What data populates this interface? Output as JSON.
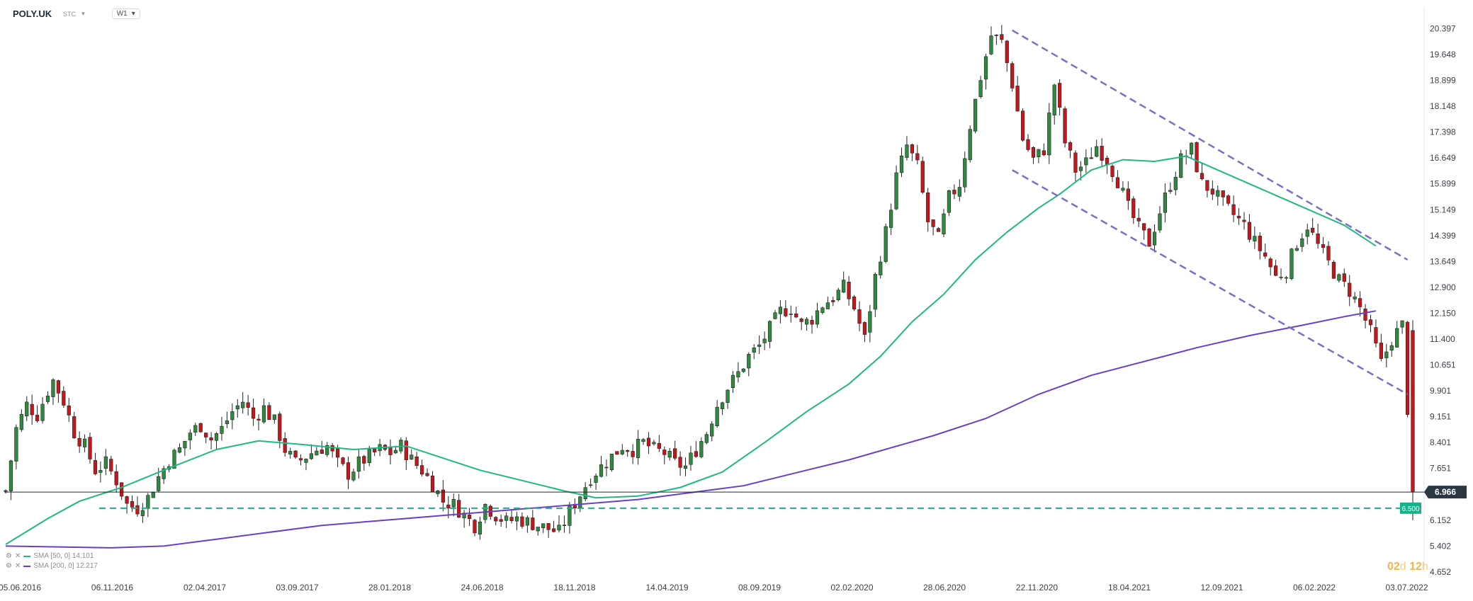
{
  "header": {
    "symbol": "POLY.UK",
    "exchange": "STC",
    "exchange_caret": "▾",
    "timeframe": "W1",
    "timeframe_caret": "▾"
  },
  "indicators": [
    {
      "label": "SMA [50, 0] 14.101",
      "color": "#1fb981"
    },
    {
      "label": "SMA [200, 0] 12.217",
      "color": "#6a3fc4"
    }
  ],
  "countdown": {
    "days": "02",
    "d": "d",
    "hours": "12",
    "h": "h"
  },
  "colors": {
    "up": "#2f8a3f",
    "down": "#c4161c",
    "sma50": "#1fb981",
    "sma200": "#6a3fc4",
    "channel": "#7a6fc6",
    "support": "#18b28a",
    "price_line": "#1f2a36"
  },
  "chart_data": {
    "type": "candlestick",
    "timeframe": "W1",
    "x_ticks": [
      "05.06.2016",
      "06.11.2016",
      "02.04.2017",
      "03.09.2017",
      "28.01.2018",
      "24.06.2018",
      "18.11.2018",
      "14.04.2019",
      "08.09.2019",
      "02.02.2020",
      "28.06.2020",
      "22.11.2020",
      "18.04.2021",
      "12.09.2021",
      "06.02.2022",
      "03.07.2022"
    ],
    "y_ticks": [
      20.397,
      19.648,
      18.899,
      18.148,
      17.398,
      16.649,
      15.899,
      15.149,
      14.399,
      13.649,
      12.9,
      12.15,
      11.4,
      10.651,
      9.901,
      9.151,
      8.401,
      7.651,
      6.901,
      6.152,
      5.402,
      4.652
    ],
    "ylim": [
      4.65,
      20.9
    ],
    "current_price": {
      "value": 6.966,
      "label": "6.966"
    },
    "support_level": {
      "value": 6.5,
      "label": "6.500"
    },
    "price_path": [
      [
        0,
        7.0
      ],
      [
        2,
        8.8
      ],
      [
        4,
        9.5
      ],
      [
        6,
        9.2
      ],
      [
        8,
        9.9
      ],
      [
        9,
        10.2
      ],
      [
        11,
        9.6
      ],
      [
        13,
        8.7
      ],
      [
        15,
        8.3
      ],
      [
        17,
        7.6
      ],
      [
        19,
        7.8
      ],
      [
        21,
        7.3
      ],
      [
        23,
        6.6
      ],
      [
        25,
        6.5
      ],
      [
        27,
        6.8
      ],
      [
        29,
        7.4
      ],
      [
        31,
        7.9
      ],
      [
        33,
        8.2
      ],
      [
        35,
        8.7
      ],
      [
        37,
        8.9
      ],
      [
        39,
        8.5
      ],
      [
        41,
        8.8
      ],
      [
        43,
        9.3
      ],
      [
        45,
        9.6
      ],
      [
        47,
        9.1
      ],
      [
        49,
        9.4
      ],
      [
        51,
        9.0
      ],
      [
        53,
        8.2
      ],
      [
        55,
        7.8
      ],
      [
        57,
        8.0
      ],
      [
        59,
        8.2
      ],
      [
        61,
        8.3
      ],
      [
        63,
        7.8
      ],
      [
        65,
        7.5
      ],
      [
        67,
        7.8
      ],
      [
        69,
        8.0
      ],
      [
        71,
        8.2
      ],
      [
        73,
        8.1
      ],
      [
        75,
        8.3
      ],
      [
        77,
        7.9
      ],
      [
        79,
        7.6
      ],
      [
        81,
        7.2
      ],
      [
        83,
        6.7
      ],
      [
        85,
        6.6
      ],
      [
        87,
        6.3
      ],
      [
        89,
        6.0
      ],
      [
        91,
        6.6
      ],
      [
        93,
        6.3
      ],
      [
        95,
        6.1
      ],
      [
        97,
        6.2
      ],
      [
        99,
        6.1
      ],
      [
        101,
        6.0
      ],
      [
        103,
        5.9
      ],
      [
        105,
        5.8
      ],
      [
        107,
        6.4
      ],
      [
        109,
        6.9
      ],
      [
        111,
        7.4
      ],
      [
        113,
        7.7
      ],
      [
        115,
        8.0
      ],
      [
        117,
        8.3
      ],
      [
        119,
        8.2
      ],
      [
        121,
        8.4
      ],
      [
        123,
        8.2
      ],
      [
        125,
        8.1
      ],
      [
        127,
        7.8
      ],
      [
        129,
        7.7
      ],
      [
        131,
        8.2
      ],
      [
        133,
        8.7
      ],
      [
        135,
        9.5
      ],
      [
        137,
        10.0
      ],
      [
        139,
        10.4
      ],
      [
        141,
        10.9
      ],
      [
        143,
        11.2
      ],
      [
        145,
        11.7
      ],
      [
        147,
        12.2
      ],
      [
        149,
        12.3
      ],
      [
        151,
        11.8
      ],
      [
        153,
        12.0
      ],
      [
        155,
        12.4
      ],
      [
        157,
        12.6
      ],
      [
        159,
        12.9
      ],
      [
        161,
        12.3
      ],
      [
        163,
        11.4
      ],
      [
        165,
        13.2
      ],
      [
        167,
        14.5
      ],
      [
        169,
        16.1
      ],
      [
        171,
        17.0
      ],
      [
        173,
        16.4
      ],
      [
        175,
        14.8
      ],
      [
        177,
        14.3
      ],
      [
        179,
        15.5
      ],
      [
        181,
        15.9
      ],
      [
        183,
        17.6
      ],
      [
        185,
        19.0
      ],
      [
        187,
        20.2
      ],
      [
        189,
        20.0
      ],
      [
        191,
        18.8
      ],
      [
        193,
        17.2
      ],
      [
        195,
        16.6
      ],
      [
        197,
        16.9
      ],
      [
        199,
        18.8
      ],
      [
        201,
        17.1
      ],
      [
        203,
        16.3
      ],
      [
        205,
        16.5
      ],
      [
        207,
        17.0
      ],
      [
        209,
        16.6
      ],
      [
        211,
        16.0
      ],
      [
        213,
        15.2
      ],
      [
        215,
        14.6
      ],
      [
        217,
        14.2
      ],
      [
        219,
        15.1
      ],
      [
        221,
        15.9
      ],
      [
        223,
        16.6
      ],
      [
        225,
        16.9
      ],
      [
        227,
        15.9
      ],
      [
        229,
        15.7
      ],
      [
        231,
        15.3
      ],
      [
        233,
        15.0
      ],
      [
        235,
        14.7
      ],
      [
        237,
        14.2
      ],
      [
        239,
        13.8
      ],
      [
        241,
        13.2
      ],
      [
        243,
        13.4
      ],
      [
        245,
        14.2
      ],
      [
        247,
        14.7
      ],
      [
        249,
        14.1
      ],
      [
        251,
        13.6
      ],
      [
        253,
        13.1
      ],
      [
        255,
        12.8
      ],
      [
        257,
        12.3
      ],
      [
        259,
        11.6
      ],
      [
        261,
        10.7
      ],
      [
        263,
        11.4
      ],
      [
        265,
        11.8
      ],
      [
        267,
        6.97
      ]
    ],
    "sma50_path": [
      [
        0,
        5.45
      ],
      [
        8,
        6.2
      ],
      [
        14,
        6.7
      ],
      [
        22,
        7.1
      ],
      [
        30,
        7.6
      ],
      [
        40,
        8.2
      ],
      [
        48,
        8.45
      ],
      [
        56,
        8.35
      ],
      [
        66,
        8.2
      ],
      [
        76,
        8.3
      ],
      [
        82,
        8.0
      ],
      [
        90,
        7.6
      ],
      [
        98,
        7.3
      ],
      [
        106,
        7.0
      ],
      [
        112,
        6.8
      ],
      [
        120,
        6.85
      ],
      [
        128,
        7.1
      ],
      [
        136,
        7.55
      ],
      [
        144,
        8.4
      ],
      [
        152,
        9.3
      ],
      [
        160,
        10.1
      ],
      [
        166,
        10.9
      ],
      [
        172,
        11.9
      ],
      [
        178,
        12.7
      ],
      [
        184,
        13.7
      ],
      [
        190,
        14.5
      ],
      [
        196,
        15.2
      ],
      [
        200,
        15.6
      ],
      [
        206,
        16.3
      ],
      [
        212,
        16.6
      ],
      [
        218,
        16.55
      ],
      [
        224,
        16.7
      ],
      [
        230,
        16.3
      ],
      [
        236,
        15.9
      ],
      [
        242,
        15.5
      ],
      [
        248,
        15.1
      ],
      [
        254,
        14.7
      ],
      [
        258,
        14.3
      ],
      [
        260,
        14.1
      ]
    ],
    "sma200_path": [
      [
        0,
        5.4
      ],
      [
        20,
        5.35
      ],
      [
        30,
        5.4
      ],
      [
        40,
        5.6
      ],
      [
        60,
        6.0
      ],
      [
        80,
        6.25
      ],
      [
        100,
        6.5
      ],
      [
        120,
        6.75
      ],
      [
        140,
        7.15
      ],
      [
        160,
        7.9
      ],
      [
        176,
        8.6
      ],
      [
        186,
        9.1
      ],
      [
        196,
        9.8
      ],
      [
        206,
        10.35
      ],
      [
        216,
        10.75
      ],
      [
        226,
        11.15
      ],
      [
        236,
        11.5
      ],
      [
        246,
        11.8
      ],
      [
        254,
        12.05
      ],
      [
        260,
        12.217
      ]
    ],
    "channel": [
      {
        "from": [
          191,
          20.35
        ],
        "to": [
          266,
          13.7
        ]
      },
      {
        "from": [
          191,
          16.3
        ],
        "to": [
          266,
          9.8
        ]
      }
    ],
    "grid": false,
    "legend_position": "bottom-left"
  }
}
